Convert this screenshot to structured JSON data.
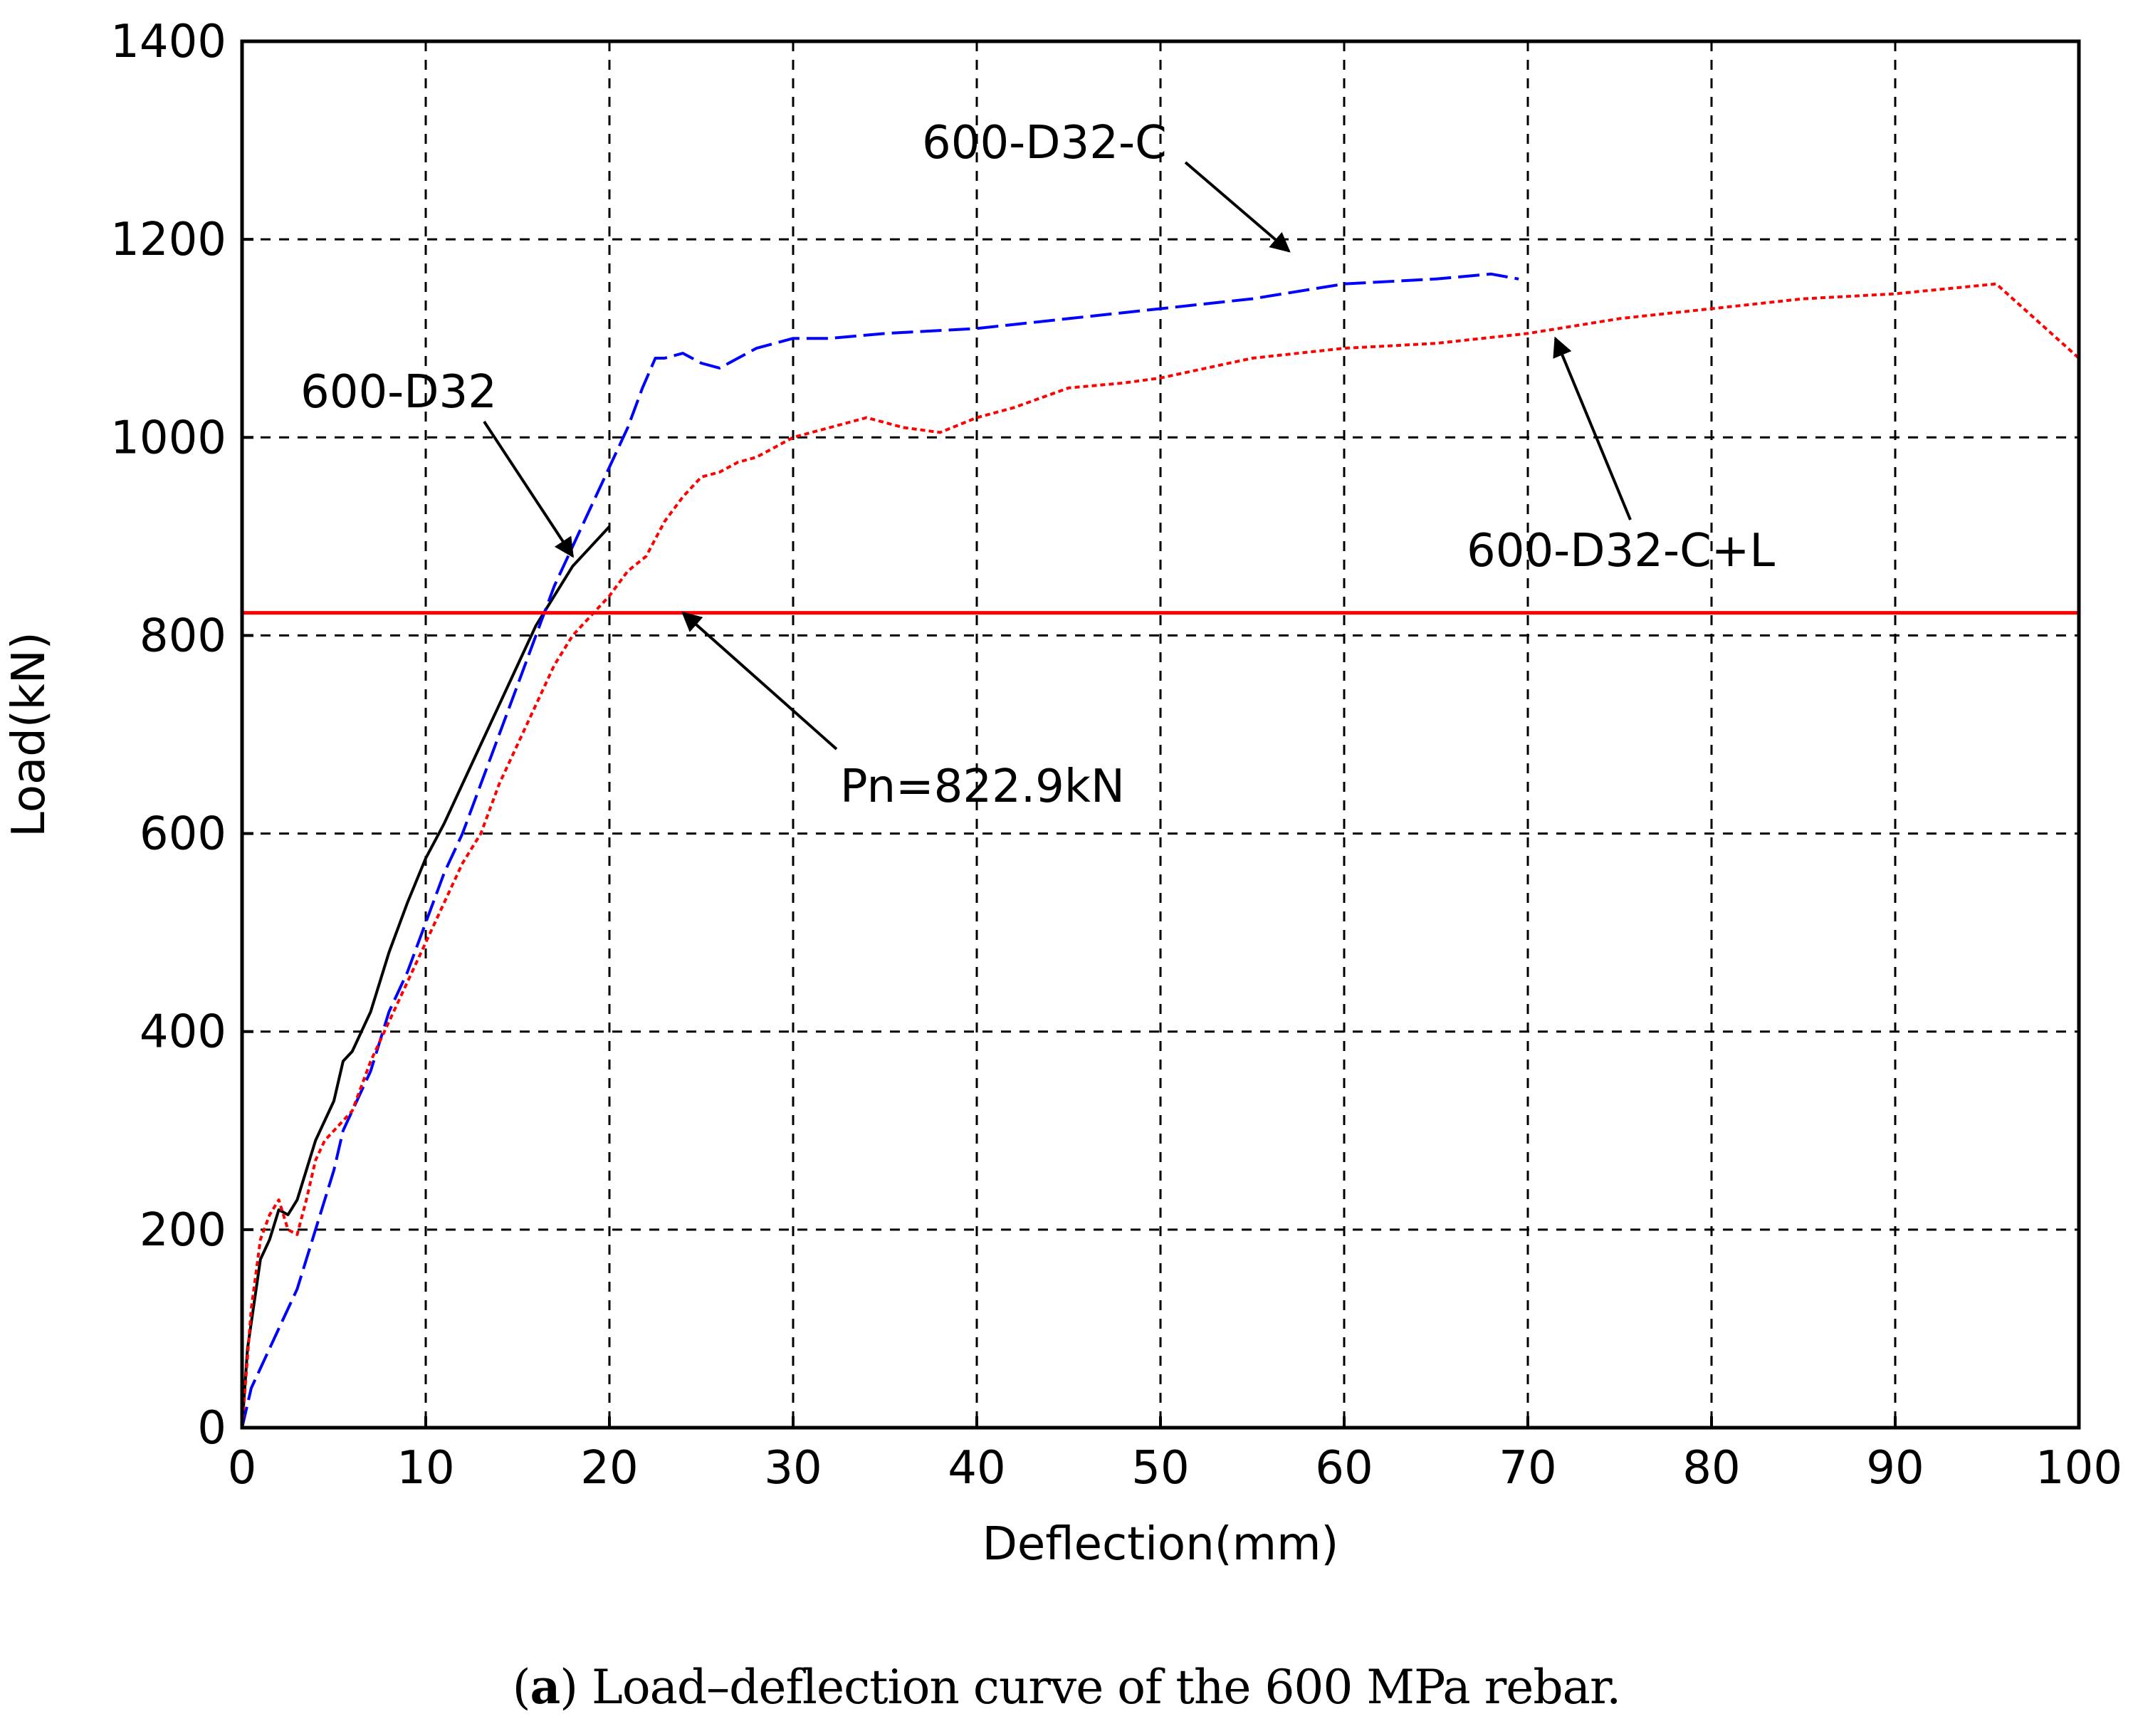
{
  "caption": {
    "open_paren": "(",
    "letter": "a",
    "close_paren": ")",
    "text": " Load–deflection curve of the 600 MPa rebar."
  },
  "chart_data": {
    "type": "line",
    "title": "",
    "xlabel": "Deflection(mm)",
    "ylabel": "Load(kN)",
    "xlim": [
      0,
      100
    ],
    "ylim": [
      0,
      1400
    ],
    "xticks": [
      0,
      10,
      20,
      30,
      40,
      50,
      60,
      70,
      80,
      90,
      100
    ],
    "yticks": [
      0,
      200,
      400,
      600,
      800,
      1000,
      1200,
      1400
    ],
    "grid": true,
    "colors": {
      "600-D32": "#000000",
      "600-D32-C": "#0000ff",
      "600-D32-C+L": "#ff0000",
      "Pn": "#ff0000"
    },
    "series": [
      {
        "name": "600-D32",
        "style": "solid",
        "x": [
          0,
          0.3,
          1.0,
          1.5,
          2.0,
          2.5,
          3.0,
          3.5,
          4.0,
          4.5,
          5.0,
          5.5,
          6.0,
          6.5,
          7.0,
          8.0,
          9.0,
          10.0,
          11.0,
          12.0,
          13.0,
          14.0,
          15.0,
          16.0,
          17.0,
          18.0,
          19.0,
          20.0
        ],
        "y": [
          0,
          80,
          170,
          190,
          220,
          215,
          230,
          260,
          290,
          310,
          330,
          370,
          380,
          400,
          420,
          480,
          530,
          575,
          610,
          650,
          690,
          730,
          770,
          810,
          840,
          870,
          890,
          910
        ]
      },
      {
        "name": "600-D32-C",
        "style": "dashed",
        "x": [
          0,
          0.5,
          1.0,
          2.0,
          3.0,
          4.0,
          5.0,
          5.5,
          6.0,
          7.0,
          8.0,
          9.0,
          10.0,
          11.0,
          12.0,
          13.0,
          14.0,
          15.0,
          16.0,
          17.0,
          18.0,
          19.0,
          20.0,
          21.0,
          21.8,
          22.5,
          23.0,
          24.0,
          25.0,
          26.0,
          27.0,
          28.0,
          30.0,
          32.0,
          35.0,
          40.0,
          45.0,
          50.0,
          55.0,
          60.0,
          65.0,
          68.0,
          69.5
        ],
        "y": [
          0,
          40,
          60,
          100,
          140,
          200,
          260,
          300,
          320,
          360,
          420,
          460,
          510,
          560,
          600,
          650,
          700,
          750,
          800,
          850,
          890,
          930,
          970,
          1010,
          1050,
          1080,
          1080,
          1085,
          1075,
          1070,
          1080,
          1090,
          1100,
          1100,
          1105,
          1110,
          1120,
          1130,
          1140,
          1155,
          1160,
          1165,
          1160
        ]
      },
      {
        "name": "600-D32-C+L",
        "style": "dotted",
        "x": [
          0,
          0.5,
          1.0,
          1.5,
          2.0,
          2.5,
          3.0,
          3.5,
          4.0,
          4.5,
          5.0,
          6.0,
          7.0,
          8.0,
          9.0,
          10.0,
          11.0,
          12.0,
          13.0,
          14.0,
          15.0,
          16.0,
          17.0,
          18.0,
          19.0,
          20.0,
          21.0,
          22.0,
          23.0,
          24.0,
          25.0,
          26.0,
          27.0,
          28.0,
          30.0,
          32.0,
          34.0,
          36.0,
          38.0,
          40.0,
          42.0,
          45.0,
          48.0,
          50.0,
          55.0,
          60.0,
          65.0,
          70.0,
          75.0,
          80.0,
          85.0,
          90.0,
          95.5,
          100.0
        ],
        "y": [
          0,
          120,
          190,
          215,
          230,
          200,
          195,
          230,
          270,
          290,
          300,
          320,
          370,
          410,
          450,
          490,
          530,
          570,
          600,
          650,
          690,
          730,
          770,
          800,
          820,
          840,
          865,
          880,
          915,
          940,
          960,
          965,
          975,
          980,
          1000,
          1010,
          1020,
          1010,
          1005,
          1020,
          1030,
          1050,
          1055,
          1060,
          1080,
          1090,
          1095,
          1105,
          1120,
          1130,
          1140,
          1145,
          1155,
          1080
        ]
      }
    ],
    "reference_line": {
      "name": "Pn",
      "y": 822.9
    },
    "annotations": [
      {
        "text": "600-D32-C",
        "label_at": [
          45,
          1300
        ],
        "arrow_to": [
          57,
          1188
        ]
      },
      {
        "text": "600-D32",
        "label_at": [
          13,
          1040
        ],
        "arrow_to": [
          18,
          880
        ]
      },
      {
        "text": "600-D32-C+L",
        "label_at": [
          77,
          880
        ],
        "arrow_to": [
          71.5,
          1100
        ]
      },
      {
        "text": "Pn=822.9kN",
        "label_at": [
          40,
          650
        ],
        "arrow_to": [
          24,
          822.9
        ]
      }
    ]
  }
}
